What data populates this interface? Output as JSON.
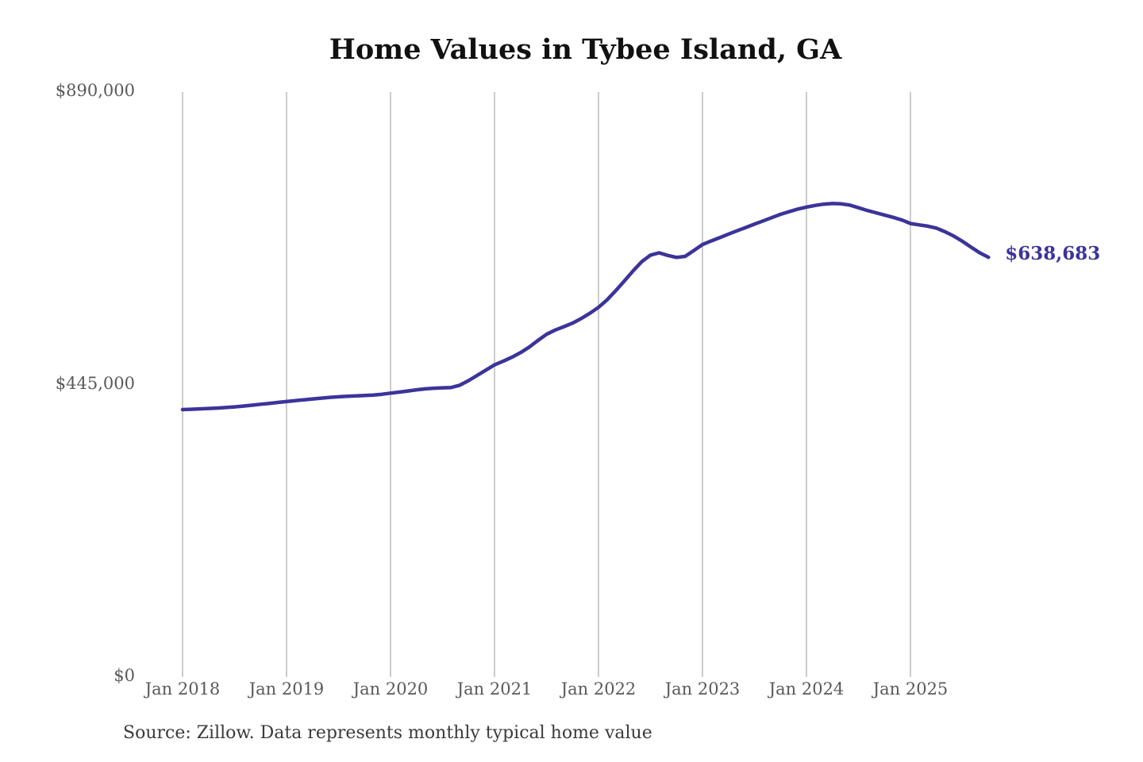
{
  "page": {
    "title": "Home Values in Tybee Island, GA",
    "source_note": "Source: Zillow. Data represents monthly typical home value",
    "end_value_label": "$638,683"
  },
  "colors": {
    "background": "#ffffff",
    "line": "#3b3499",
    "gridline": "#cccccc",
    "title_text": "#111111",
    "axis_text": "#595959",
    "source_text": "#3a3a3a"
  },
  "chart_data": {
    "type": "line",
    "title": "Home Values in Tybee Island, GA",
    "series_name": "Monthly typical home value",
    "frequency": "monthly",
    "start_month": "2018-01",
    "end_month": "2025-10",
    "values": [
      407000,
      407500,
      408000,
      408600,
      409300,
      410100,
      411100,
      412300,
      413600,
      415000,
      416400,
      417800,
      419200,
      420500,
      421800,
      423100,
      424400,
      425500,
      426400,
      427100,
      427700,
      428300,
      429100,
      430300,
      432000,
      433500,
      435200,
      437000,
      438500,
      439500,
      440000,
      440500,
      444000,
      451000,
      459000,
      467000,
      475000,
      480500,
      486500,
      493500,
      502000,
      512000,
      521500,
      528000,
      533000,
      538500,
      545500,
      553500,
      562500,
      574000,
      588000,
      603000,
      618000,
      632000,
      642000,
      645500,
      641500,
      638500,
      640000,
      649000,
      658000,
      663500,
      668500,
      674000,
      679000,
      684000,
      689000,
      694000,
      699000,
      704000,
      708000,
      712000,
      715000,
      717500,
      719500,
      720500,
      720000,
      718000,
      714000,
      710000,
      706500,
      703000,
      699500,
      695500,
      690000,
      688000,
      686000,
      683000,
      677500,
      671000,
      663000,
      654000,
      645500,
      638683
    ],
    "latest_value": 638683,
    "latest_value_label": "$638,683",
    "x_tick_labels": [
      "Jan 2018",
      "Jan 2019",
      "Jan 2020",
      "Jan 2021",
      "Jan 2022",
      "Jan 2023",
      "Jan 2024",
      "Jan 2025"
    ],
    "y_ticks": [
      {
        "label": "$890,000",
        "value": 890000
      },
      {
        "label": "$445,000",
        "value": 445000
      },
      {
        "label": "$0",
        "value": 0
      }
    ],
    "xlabel": "",
    "ylabel": "",
    "ylim": [
      0,
      890000
    ],
    "grid": "vertical-only",
    "legend": "none"
  }
}
